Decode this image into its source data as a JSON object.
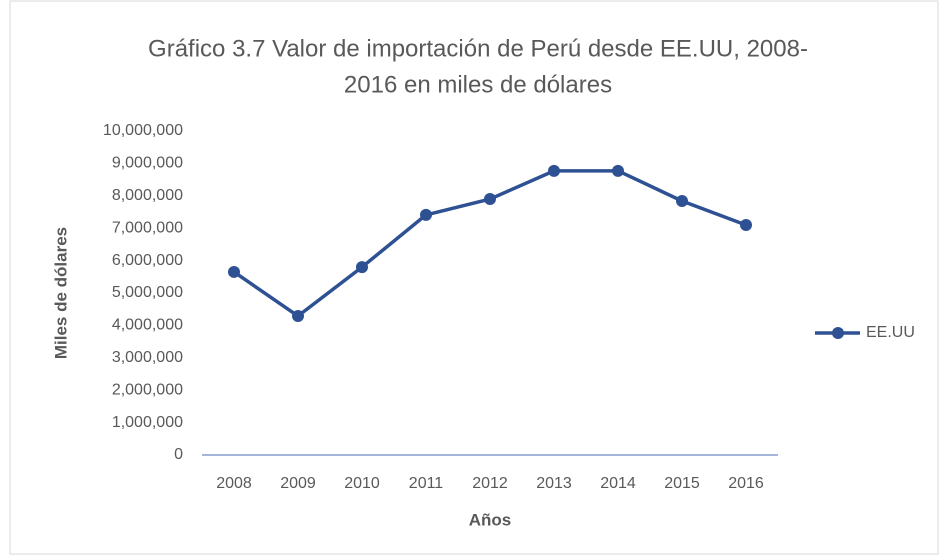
{
  "chart_data": {
    "type": "line",
    "title": [
      "Gráfico 3.7 Valor de importación de Perú desde EE.UU, 2008-",
      "2016 en miles de dólares"
    ],
    "x_label": "Años",
    "y_label": "Miles de dólares",
    "categories": [
      "2008",
      "2009",
      "2010",
      "2011",
      "2012",
      "2013",
      "2014",
      "2015",
      "2016"
    ],
    "series": [
      {
        "name": "EE.UU",
        "color": "#2e5193",
        "values": [
          5650000,
          4290000,
          5800000,
          7410000,
          7900000,
          8770000,
          8770000,
          7840000,
          7100000
        ]
      }
    ],
    "ylim": [
      0,
      10000000
    ],
    "yticks": [
      0,
      {
        "value": 1000000,
        "label": "1,000,000"
      },
      {
        "value": 2000000,
        "label": "2,000,000"
      },
      {
        "value": 3000000,
        "label": "3,000,000"
      },
      {
        "value": 4000000,
        "label": "4,000,000"
      },
      {
        "value": 5000000,
        "label": "5,000,000"
      },
      {
        "value": 6000000,
        "label": "6,000,000"
      },
      {
        "value": 7000000,
        "label": "7,000,000"
      },
      {
        "value": 8000000,
        "label": "8,000,000"
      },
      {
        "value": 9000000,
        "label": "9,000,000"
      },
      {
        "value": 10000000,
        "label": "10,000,000"
      }
    ],
    "grid": false,
    "legend": "right"
  }
}
